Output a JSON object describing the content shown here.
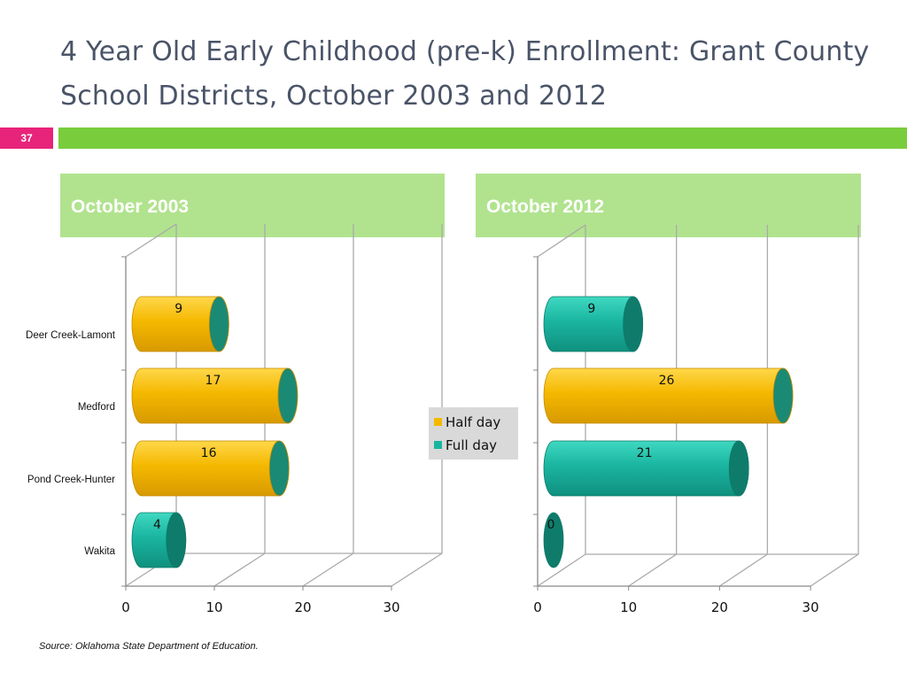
{
  "slide": {
    "title": "4 Year Old Early Childhood (pre-k) Enrollment: Grant County School Districts, October 2003 and 2012",
    "number": "37",
    "source": "Source:  Oklahoma State Department of Education."
  },
  "panels": [
    {
      "header": "October 2003"
    },
    {
      "header": "October 2012"
    }
  ],
  "legend": {
    "items": [
      {
        "label": "Half day",
        "color": "#f5b800"
      },
      {
        "label": "Full day",
        "color": "#1ab5a0"
      }
    ]
  },
  "chart_data": [
    {
      "type": "bar",
      "orientation": "horizontal",
      "categories": [
        "Deer Creek-Lamont",
        "Medford",
        "Pond Creek-Hunter",
        "Wakita"
      ],
      "values": [
        9,
        17,
        16,
        4
      ],
      "bar_types": [
        "Half day",
        "Half day",
        "Half day",
        "Full day"
      ],
      "xlim": [
        0,
        30
      ],
      "xticks": [
        0,
        10,
        20,
        30
      ]
    },
    {
      "type": "bar",
      "orientation": "horizontal",
      "categories": [
        "Deer Creek-Lamont",
        "Medford",
        "Pond Creek-Hunter",
        "Wakita"
      ],
      "values": [
        9,
        26,
        21,
        0
      ],
      "bar_types": [
        "Full day",
        "Half day",
        "Full day",
        "Full day"
      ],
      "xlim": [
        0,
        30
      ],
      "xticks": [
        0,
        10,
        20,
        30
      ]
    }
  ]
}
